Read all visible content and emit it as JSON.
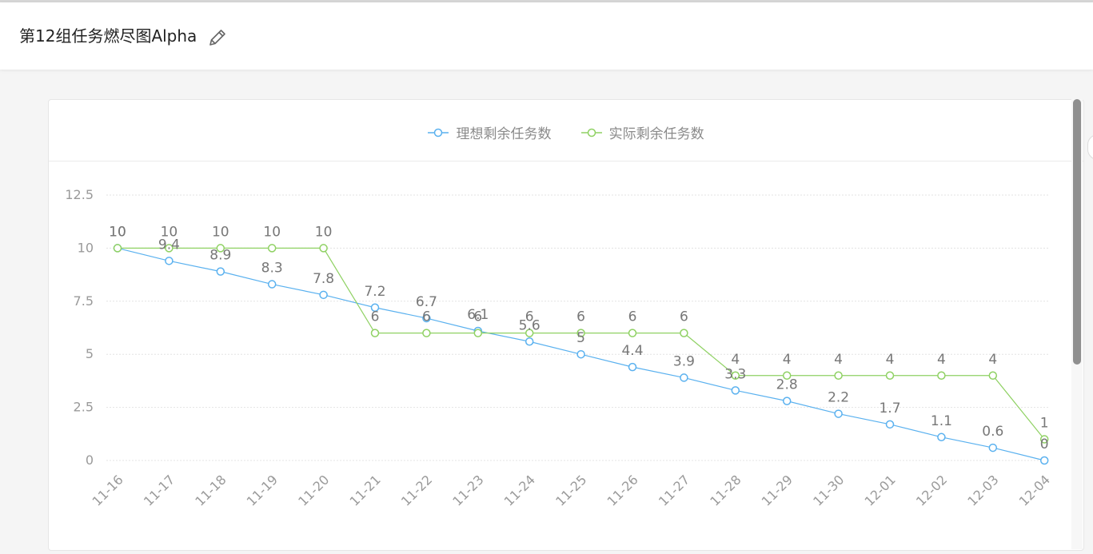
{
  "header": {
    "title": "第12组任务燃尽图Alpha"
  },
  "icons": {
    "edit": "pencil-icon"
  },
  "colors": {
    "ideal": "#5ab1ef",
    "actual": "#8fd163",
    "axis_text": "#9a9a9a",
    "label_text": "#777777",
    "grid": "#e3e3e3"
  },
  "chart_data": {
    "type": "line",
    "title": "",
    "xlabel": "",
    "ylabel": "",
    "categories": [
      "11-16",
      "11-17",
      "11-18",
      "11-19",
      "11-20",
      "11-21",
      "11-22",
      "11-23",
      "11-24",
      "11-25",
      "11-26",
      "11-27",
      "11-28",
      "11-29",
      "11-30",
      "12-01",
      "12-02",
      "12-03",
      "12-04"
    ],
    "ylim": [
      0,
      12.5
    ],
    "yticks": [
      "0",
      "2.5",
      "5",
      "7.5",
      "10",
      "12.5"
    ],
    "grid": true,
    "legend_position": "top",
    "series": [
      {
        "name": "理想剩余任务数",
        "color": "#5ab1ef",
        "values": [
          10,
          9.4,
          8.9,
          8.3,
          7.8,
          7.2,
          6.7,
          6.1,
          5.6,
          5,
          4.4,
          3.9,
          3.3,
          2.8,
          2.2,
          1.7,
          1.1,
          0.6,
          0
        ],
        "labels": [
          "10",
          "9.4",
          "8.9",
          "8.3",
          "7.8",
          "7.2",
          "6.7",
          "6.1",
          "5.6",
          "5",
          "4.4",
          "3.9",
          "3.3",
          "2.8",
          "2.2",
          "1.7",
          "1.1",
          "0.6",
          "0"
        ]
      },
      {
        "name": "实际剩余任务数",
        "color": "#8fd163",
        "values": [
          10,
          10,
          10,
          10,
          10,
          6,
          6,
          6,
          6,
          6,
          6,
          6,
          4,
          4,
          4,
          4,
          4,
          4,
          1
        ],
        "labels": [
          "10",
          "10",
          "10",
          "10",
          "10",
          "6",
          "6",
          "6",
          "6",
          "6",
          "6",
          "6",
          "4",
          "4",
          "4",
          "4",
          "4",
          "4",
          "1"
        ]
      }
    ]
  }
}
